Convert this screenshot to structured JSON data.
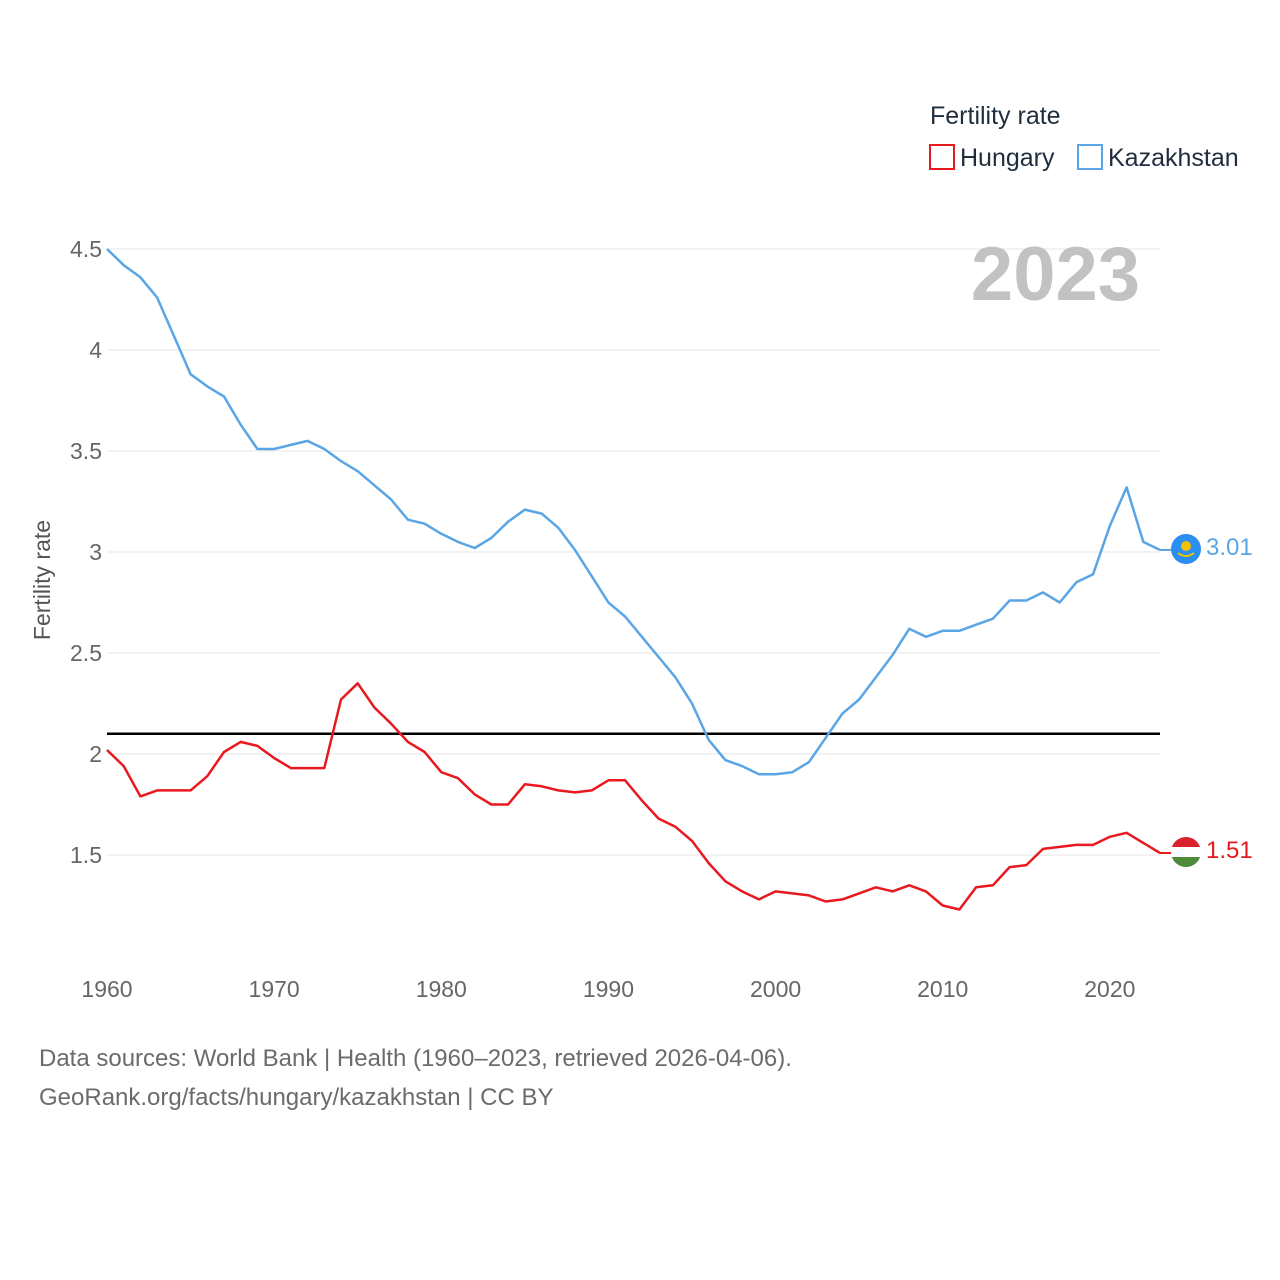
{
  "chart_data": {
    "type": "line",
    "ylabel": "Fertility rate",
    "legend_title": "Fertility rate",
    "legend_position": "top-right",
    "year_label": "2023",
    "xlim": [
      1960,
      2023
    ],
    "ylim": [
      1.0,
      4.5
    ],
    "x_ticks": [
      1960,
      1970,
      1980,
      1990,
      2000,
      2010,
      2020
    ],
    "y_ticks": [
      1.5,
      2,
      2.5,
      3,
      3.5,
      4,
      4.5
    ],
    "grid": true,
    "reference_line": 2.1,
    "x": [
      1960,
      1961,
      1962,
      1963,
      1964,
      1965,
      1966,
      1967,
      1968,
      1969,
      1970,
      1971,
      1972,
      1973,
      1974,
      1975,
      1976,
      1977,
      1978,
      1979,
      1980,
      1981,
      1982,
      1983,
      1984,
      1985,
      1986,
      1987,
      1988,
      1989,
      1990,
      1991,
      1992,
      1993,
      1994,
      1995,
      1996,
      1997,
      1998,
      1999,
      2000,
      2001,
      2002,
      2003,
      2004,
      2005,
      2006,
      2007,
      2008,
      2009,
      2010,
      2011,
      2012,
      2013,
      2014,
      2015,
      2016,
      2017,
      2018,
      2019,
      2020,
      2021,
      2022,
      2023
    ],
    "series": [
      {
        "name": "Hungary",
        "color": "#e8191f",
        "end_label": "1.51",
        "values": [
          2.02,
          1.94,
          1.79,
          1.82,
          1.82,
          1.82,
          1.89,
          2.01,
          2.06,
          2.04,
          1.98,
          1.93,
          1.93,
          1.93,
          2.27,
          2.35,
          2.23,
          2.15,
          2.06,
          2.01,
          1.91,
          1.88,
          1.8,
          1.75,
          1.75,
          1.85,
          1.84,
          1.82,
          1.81,
          1.82,
          1.87,
          1.87,
          1.77,
          1.68,
          1.64,
          1.57,
          1.46,
          1.37,
          1.32,
          1.28,
          1.32,
          1.31,
          1.3,
          1.27,
          1.28,
          1.31,
          1.34,
          1.32,
          1.35,
          1.32,
          1.25,
          1.23,
          1.34,
          1.35,
          1.44,
          1.45,
          1.53,
          1.54,
          1.55,
          1.55,
          1.59,
          1.61,
          1.56,
          1.51
        ]
      },
      {
        "name": "Kazakhstan",
        "color": "#5aa5e6",
        "end_label": "3.01",
        "values": [
          4.5,
          4.42,
          4.36,
          4.26,
          4.07,
          3.88,
          3.82,
          3.77,
          3.63,
          3.51,
          3.51,
          3.53,
          3.55,
          3.51,
          3.45,
          3.4,
          3.33,
          3.26,
          3.16,
          3.14,
          3.09,
          3.05,
          3.02,
          3.07,
          3.15,
          3.21,
          3.19,
          3.12,
          3.01,
          2.88,
          2.75,
          2.68,
          2.58,
          2.48,
          2.38,
          2.25,
          2.07,
          1.97,
          1.94,
          1.9,
          1.9,
          1.91,
          1.96,
          2.08,
          2.2,
          2.27,
          2.38,
          2.49,
          2.62,
          2.58,
          2.61,
          2.61,
          2.64,
          2.67,
          2.76,
          2.76,
          2.8,
          2.75,
          2.85,
          2.89,
          3.13,
          3.32,
          3.05,
          3.01
        ]
      }
    ]
  },
  "footer": {
    "line1": "Data sources: World Bank | Health (1960–2023, retrieved 2026-04-06).",
    "line2": "GeoRank.org/facts/hungary/kazakhstan | CC BY"
  }
}
